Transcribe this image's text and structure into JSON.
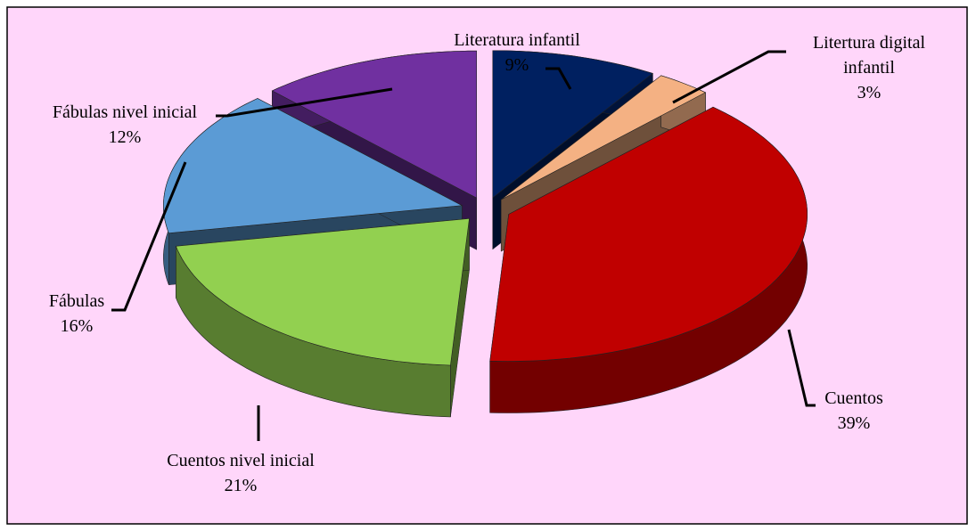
{
  "chart_data": {
    "type": "pie",
    "categories": [
      "Literatura infantil",
      "Litertura digital infantil",
      "Cuentos",
      "Cuentos nivel inicial",
      "Fábulas",
      "Fábulas nivel inicial"
    ],
    "values": [
      9,
      3,
      39,
      21,
      16,
      12
    ],
    "value_labels": [
      "9%",
      "3%",
      "39%",
      "21%",
      "16%",
      "12%"
    ],
    "colors": [
      "#002060",
      "#f4b183",
      "#c00000",
      "#92d050",
      "#5b9bd5",
      "#7030a0"
    ]
  }
}
